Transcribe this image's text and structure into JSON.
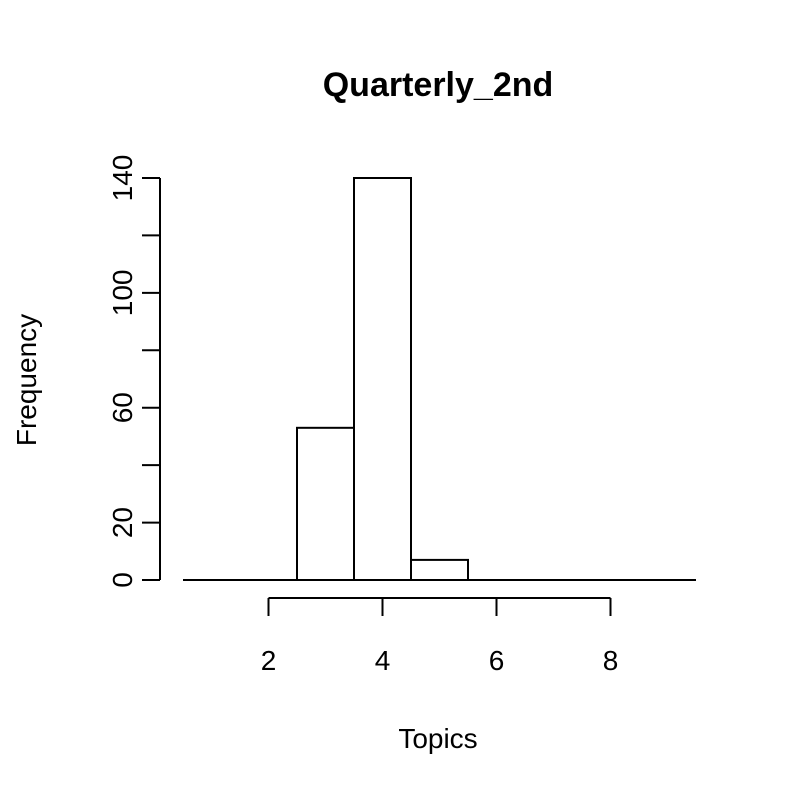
{
  "chart_data": {
    "type": "bar",
    "title": "Quarterly_2nd",
    "xlabel": "Topics",
    "ylabel": "Frequency",
    "bins": [
      {
        "x0": 0.5,
        "x1": 1.5,
        "count": 0
      },
      {
        "x0": 1.5,
        "x1": 2.5,
        "count": 0
      },
      {
        "x0": 2.5,
        "x1": 3.5,
        "count": 53
      },
      {
        "x0": 3.5,
        "x1": 4.5,
        "count": 140
      },
      {
        "x0": 4.5,
        "x1": 5.5,
        "count": 7
      },
      {
        "x0": 5.5,
        "x1": 6.5,
        "count": 0
      },
      {
        "x0": 6.5,
        "x1": 7.5,
        "count": 0
      },
      {
        "x0": 7.5,
        "x1": 8.5,
        "count": 0
      },
      {
        "x0": 8.5,
        "x1": 9.5,
        "count": 0
      }
    ],
    "xlim": [
      0.5,
      9.5
    ],
    "ylim": [
      0,
      140
    ],
    "x_ticks": [
      2,
      4,
      6,
      8
    ],
    "x_tick_labels": [
      "2",
      "4",
      "6",
      "8"
    ],
    "y_ticks": [
      0,
      20,
      40,
      60,
      80,
      100,
      120,
      140
    ],
    "y_tick_labels": [
      "0",
      "20",
      "",
      "60",
      "",
      "100",
      "",
      "140"
    ],
    "grid": false,
    "colors": {
      "bar_fill": "#ffffff",
      "bar_stroke": "#000000"
    }
  }
}
